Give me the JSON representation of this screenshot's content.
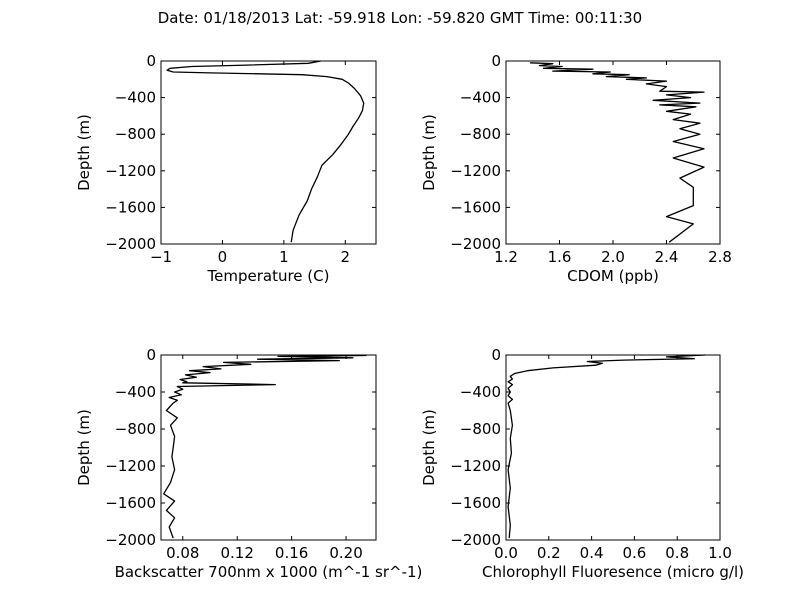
{
  "title": "Date: 01/18/2013  Lat:  -59.918 Lon:  -59.820  GMT Time: 00:11:30",
  "chart_data": [
    {
      "type": "line",
      "xlabel": "Temperature (C)",
      "ylabel": "Depth (m)",
      "xlim": [
        -1,
        2.5
      ],
      "ylim": [
        -2000,
        0
      ],
      "xticks": [
        -1,
        0,
        1,
        2
      ],
      "xtick_labels": [
        "−1",
        "0",
        "1",
        "2"
      ],
      "yticks": [
        0,
        -400,
        -800,
        -1200,
        -1600,
        -2000
      ],
      "ytick_labels": [
        "0",
        "−400",
        "−800",
        "−1200",
        "−1600",
        "−2000"
      ],
      "series": [
        {
          "x": [
            1.6,
            1.4,
            0.4,
            -0.5,
            -0.85,
            -0.9,
            -0.8,
            -0.2,
            0.6,
            1.3,
            1.7,
            1.95,
            2.05,
            2.15,
            2.25,
            2.3,
            2.28,
            2.22,
            2.12,
            2.05,
            1.92,
            1.8,
            1.62,
            1.55,
            1.45,
            1.38,
            1.25,
            1.15,
            1.12
          ],
          "y": [
            0,
            -25,
            -45,
            -60,
            -80,
            -100,
            -120,
            -130,
            -140,
            -150,
            -170,
            -200,
            -240,
            -300,
            -380,
            -460,
            -540,
            -620,
            -720,
            -800,
            -920,
            -1020,
            -1140,
            -1260,
            -1400,
            -1530,
            -1680,
            -1850,
            -1980
          ]
        }
      ]
    },
    {
      "type": "line",
      "xlabel": "CDOM (ppb)",
      "ylabel": "Depth (m)",
      "xlim": [
        1.2,
        2.8
      ],
      "ylim": [
        -2000,
        0
      ],
      "xticks": [
        1.2,
        1.6,
        2.0,
        2.4,
        2.8
      ],
      "xtick_labels": [
        "1.2",
        "1.6",
        "2.0",
        "2.4",
        "2.8"
      ],
      "yticks": [
        0,
        -400,
        -800,
        -1200,
        -1600,
        -2000
      ],
      "ytick_labels": [
        "0",
        "−400",
        "−800",
        "−1200",
        "−1600",
        "−2000"
      ],
      "series": [
        {
          "x": [
            1.38,
            1.55,
            1.45,
            1.62,
            1.48,
            1.85,
            1.55,
            1.98,
            1.85,
            2.12,
            1.95,
            2.25,
            2.1,
            2.4,
            2.25,
            2.4,
            2.35,
            2.68,
            2.4,
            2.58,
            2.3,
            2.65,
            2.35,
            2.62,
            2.4,
            2.58,
            2.45,
            2.65,
            2.5,
            2.65,
            2.45,
            2.68,
            2.45,
            2.68,
            2.5,
            2.6,
            2.6,
            2.4,
            2.6,
            2.42
          ],
          "y": [
            -20,
            -30,
            -50,
            -60,
            -80,
            -90,
            -110,
            -120,
            -140,
            -150,
            -170,
            -185,
            -200,
            -220,
            -250,
            -280,
            -330,
            -340,
            -370,
            -400,
            -430,
            -460,
            -480,
            -500,
            -550,
            -580,
            -640,
            -680,
            -740,
            -800,
            -880,
            -960,
            -1060,
            -1160,
            -1280,
            -1380,
            -1580,
            -1700,
            -1780,
            -1980
          ]
        }
      ]
    },
    {
      "type": "line",
      "xlabel": "Backscatter 700nm x 1000 (m^-1 sr^-1)",
      "ylabel": "Depth (m)",
      "xlim": [
        0.064,
        0.222
      ],
      "ylim": [
        -2000,
        0
      ],
      "xticks": [
        0.08,
        0.12,
        0.16,
        0.2
      ],
      "xtick_labels": [
        "0.08",
        "0.12",
        "0.16",
        "0.20"
      ],
      "yticks": [
        0,
        -400,
        -800,
        -1200,
        -1600,
        -2000
      ],
      "ytick_labels": [
        "0",
        "−400",
        "−800",
        "−1200",
        "−1600",
        "−2000"
      ],
      "series": [
        {
          "x": [
            0.215,
            0.15,
            0.205,
            0.135,
            0.195,
            0.11,
            0.13,
            0.095,
            0.108,
            0.085,
            0.1,
            0.082,
            0.09,
            0.078,
            0.083,
            0.08,
            0.148,
            0.076,
            0.08,
            0.074,
            0.079,
            0.07,
            0.076,
            0.073,
            0.068,
            0.076,
            0.071,
            0.074,
            0.073,
            0.072,
            0.074,
            0.071,
            0.066,
            0.074,
            0.068,
            0.074,
            0.07,
            0.073
          ],
          "y": [
            -5,
            -15,
            -30,
            -45,
            -60,
            -80,
            -100,
            -125,
            -150,
            -170,
            -190,
            -215,
            -240,
            -265,
            -290,
            -300,
            -320,
            -340,
            -370,
            -400,
            -430,
            -460,
            -490,
            -520,
            -600,
            -680,
            -760,
            -880,
            -1000,
            -1100,
            -1240,
            -1380,
            -1500,
            -1580,
            -1680,
            -1760,
            -1860,
            -1980
          ]
        }
      ]
    },
    {
      "type": "line",
      "xlabel": "Chlorophyll Fluoresence (micro g/l)",
      "ylabel": "Depth (m)",
      "xlim": [
        0,
        1
      ],
      "ylim": [
        -2000,
        0
      ],
      "xticks": [
        0,
        0.2,
        0.4,
        0.6,
        0.8,
        1.0
      ],
      "xtick_labels": [
        "0.0",
        "0.2",
        "0.4",
        "0.6",
        "0.8",
        "1.0"
      ],
      "yticks": [
        0,
        -400,
        -800,
        -1200,
        -1600,
        -2000
      ],
      "ytick_labels": [
        "0",
        "−400",
        "−800",
        "−1200",
        "−1600",
        "−2000"
      ],
      "series": [
        {
          "x": [
            0.93,
            0.75,
            0.88,
            0.55,
            0.38,
            0.45,
            0.42,
            0.22,
            0.1,
            0.04,
            0.02,
            0.03,
            0.01,
            0.03,
            0.01,
            0.02,
            0.01,
            0.03,
            0.01,
            0.02,
            0.03,
            0.02,
            0.025,
            0.01,
            0.02,
            0.01,
            0.02,
            0.015
          ],
          "y": [
            0,
            -20,
            -40,
            -55,
            -70,
            -90,
            -110,
            -140,
            -170,
            -200,
            -230,
            -260,
            -290,
            -320,
            -360,
            -400,
            -440,
            -480,
            -520,
            -600,
            -760,
            -900,
            -1060,
            -1240,
            -1440,
            -1640,
            -1840,
            -1980
          ]
        }
      ]
    }
  ]
}
